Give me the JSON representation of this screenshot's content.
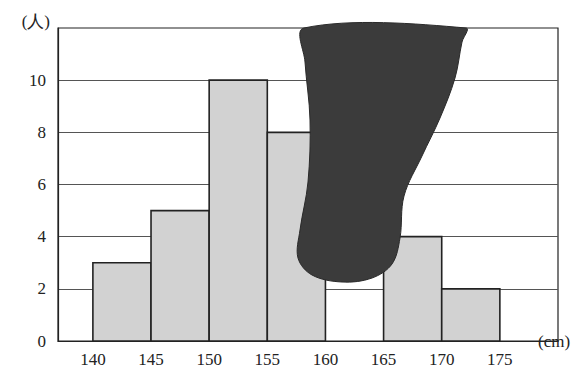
{
  "chart_data": {
    "type": "histogram",
    "x_label": "(cm)",
    "y_label": "(人)",
    "bins": [
      140,
      145,
      150,
      155,
      160,
      165,
      170,
      175
    ],
    "values": [
      3,
      5,
      10,
      8,
      null,
      4,
      2
    ],
    "color": "#d2d2d2",
    "xlim": [
      137,
      180
    ],
    "xticks": [
      140,
      145,
      150,
      155,
      160,
      165,
      170,
      175
    ],
    "ylim": [
      0,
      12
    ],
    "yticks": [
      0,
      2,
      4,
      6,
      8,
      10
    ],
    "grid": true
  }
}
